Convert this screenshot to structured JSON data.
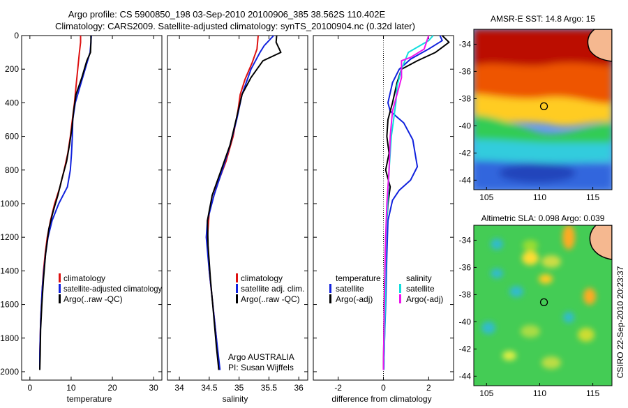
{
  "header": {
    "line1": "Argo profile: CS 5900850_198 03-Sep-2010 20100906_385 38.562S 110.402E",
    "line2": "Climatology: CARS2009. Satellite-adjusted climatology: synTS_20100904.nc (0.32d later)"
  },
  "stamp": "CSIRO 22-Sep-2010 20:23:37",
  "colors": {
    "red": "#dd1111",
    "blue": "#1122dd",
    "black": "#000000",
    "cyan": "#11dddd",
    "magenta": "#ee11ee",
    "land": "#f5b890"
  },
  "chart_data": [
    {
      "type": "line",
      "id": "temperature",
      "xlabel": "temperature",
      "xlim": [
        -2,
        32
      ],
      "ylim": [
        2050,
        0
      ],
      "xticks": [
        0,
        10,
        20,
        30
      ],
      "yticks": [
        0,
        200,
        400,
        600,
        800,
        1000,
        1200,
        1400,
        1600,
        1800,
        2000
      ],
      "legend": [
        "climatology",
        "satellite-adjusted climatology",
        "Argo(..raw -QC)"
      ],
      "series": [
        {
          "name": "climatology",
          "color": "red",
          "points": [
            [
              12.3,
              0
            ],
            [
              12.3,
              40
            ],
            [
              12.0,
              100
            ],
            [
              11.6,
              200
            ],
            [
              11.2,
              300
            ],
            [
              10.8,
              400
            ],
            [
              10.3,
              500
            ],
            [
              9.8,
              600
            ],
            [
              9.2,
              700
            ],
            [
              8.3,
              800
            ],
            [
              7.3,
              900
            ],
            [
              6.0,
              1000
            ],
            [
              5.0,
              1100
            ],
            [
              4.2,
              1200
            ],
            [
              3.7,
              1300
            ],
            [
              3.3,
              1400
            ],
            [
              3.0,
              1500
            ],
            [
              2.8,
              1600
            ],
            [
              2.6,
              1700
            ],
            [
              2.5,
              1800
            ],
            [
              2.4,
              1900
            ],
            [
              2.4,
              1990
            ]
          ]
        },
        {
          "name": "satellite-adjusted climatology",
          "color": "blue",
          "points": [
            [
              14.9,
              0
            ],
            [
              14.8,
              40
            ],
            [
              14.6,
              100
            ],
            [
              13.4,
              200
            ],
            [
              12.2,
              300
            ],
            [
              11.0,
              400
            ],
            [
              10.4,
              500
            ],
            [
              10.3,
              600
            ],
            [
              10.1,
              700
            ],
            [
              9.8,
              800
            ],
            [
              9.1,
              900
            ],
            [
              7.0,
              1000
            ],
            [
              5.4,
              1100
            ],
            [
              4.4,
              1200
            ],
            [
              3.8,
              1300
            ],
            [
              3.4,
              1400
            ],
            [
              3.0,
              1500
            ],
            [
              2.8,
              1600
            ],
            [
              2.6,
              1700
            ],
            [
              2.5,
              1800
            ],
            [
              2.4,
              1900
            ],
            [
              2.4,
              1990
            ]
          ]
        },
        {
          "name": "Argo(..raw -QC)",
          "color": "black",
          "points": [
            [
              14.8,
              0
            ],
            [
              14.8,
              40
            ],
            [
              14.7,
              100
            ],
            [
              13.8,
              150
            ],
            [
              12.6,
              250
            ],
            [
              11.2,
              350
            ],
            [
              10.6,
              450
            ],
            [
              10.2,
              550
            ],
            [
              9.6,
              650
            ],
            [
              8.9,
              750
            ],
            [
              7.8,
              850
            ],
            [
              6.8,
              950
            ],
            [
              5.6,
              1050
            ],
            [
              4.6,
              1150
            ],
            [
              3.8,
              1300
            ],
            [
              3.3,
              1450
            ],
            [
              2.9,
              1600
            ],
            [
              2.6,
              1750
            ],
            [
              2.5,
              1900
            ],
            [
              2.4,
              1990
            ]
          ]
        }
      ]
    },
    {
      "type": "line",
      "id": "salinity",
      "xlabel": "salinity",
      "xlim": [
        33.8,
        36.15
      ],
      "ylim": [
        2050,
        0
      ],
      "xticks": [
        34,
        34.5,
        35,
        35.5,
        36
      ],
      "xticklabels": [
        "34",
        "34.5",
        "35",
        "35.5",
        "36"
      ],
      "legend": [
        "climatology",
        "satellite adj. clim.",
        "Argo(..raw -QC)"
      ],
      "annotation": [
        "Argo AUSTRALIA",
        "PI: Susan Wijffels"
      ],
      "series": [
        {
          "name": "climatology",
          "color": "red",
          "points": [
            [
              35.32,
              0
            ],
            [
              35.3,
              80
            ],
            [
              35.22,
              160
            ],
            [
              35.1,
              260
            ],
            [
              35.02,
              350
            ],
            [
              34.98,
              450
            ],
            [
              34.9,
              600
            ],
            [
              34.78,
              750
            ],
            [
              34.62,
              900
            ],
            [
              34.5,
              1050
            ],
            [
              34.47,
              1200
            ],
            [
              34.5,
              1400
            ],
            [
              34.56,
              1600
            ],
            [
              34.62,
              1800
            ],
            [
              34.66,
              1990
            ]
          ]
        },
        {
          "name": "satellite adj. clim.",
          "color": "blue",
          "points": [
            [
              35.58,
              0
            ],
            [
              35.42,
              60
            ],
            [
              35.35,
              100
            ],
            [
              35.2,
              200
            ],
            [
              35.05,
              350
            ],
            [
              34.96,
              500
            ],
            [
              34.85,
              650
            ],
            [
              34.72,
              800
            ],
            [
              34.58,
              950
            ],
            [
              34.47,
              1100
            ],
            [
              34.45,
              1200
            ],
            [
              34.5,
              1400
            ],
            [
              34.56,
              1600
            ],
            [
              34.62,
              1800
            ],
            [
              34.68,
              1990
            ]
          ]
        },
        {
          "name": "Argo(..raw -QC)",
          "color": "black",
          "points": [
            [
              35.63,
              0
            ],
            [
              35.62,
              40
            ],
            [
              35.7,
              100
            ],
            [
              35.4,
              150
            ],
            [
              35.2,
              250
            ],
            [
              35.05,
              350
            ],
            [
              34.95,
              500
            ],
            [
              34.85,
              650
            ],
            [
              34.7,
              800
            ],
            [
              34.55,
              950
            ],
            [
              34.47,
              1100
            ],
            [
              34.48,
              1250
            ],
            [
              34.52,
              1450
            ],
            [
              34.57,
              1650
            ],
            [
              34.62,
              1850
            ],
            [
              34.66,
              1990
            ]
          ]
        }
      ]
    },
    {
      "type": "line",
      "id": "difference",
      "xlabel": "difference from climatology",
      "xlim": [
        -3.1,
        3.1
      ],
      "ylim": [
        2050,
        0
      ],
      "xticks": [
        -2,
        0,
        2
      ],
      "legend": [
        "temperature",
        "satellite",
        "Argo(-adj)",
        "salinity",
        "satellite",
        "Argo(-adj)"
      ],
      "series": [
        {
          "name": "temperature satellite",
          "color": "blue",
          "points": [
            [
              2.5,
              0
            ],
            [
              2.6,
              30
            ],
            [
              2.0,
              80
            ],
            [
              1.2,
              140
            ],
            [
              0.7,
              200
            ],
            [
              0.4,
              280
            ],
            [
              0.2,
              400
            ],
            [
              0.3,
              450
            ],
            [
              0.9,
              520
            ],
            [
              1.3,
              620
            ],
            [
              1.5,
              780
            ],
            [
              1.2,
              860
            ],
            [
              0.7,
              920
            ],
            [
              0.4,
              980
            ],
            [
              0.2,
              1100
            ],
            [
              0.15,
              1300
            ],
            [
              0.1,
              1600
            ],
            [
              0.05,
              1800
            ],
            [
              0.02,
              1990
            ]
          ]
        },
        {
          "name": "temperature Argo(-adj)",
          "color": "black",
          "points": [
            [
              2.6,
              0
            ],
            [
              2.9,
              40
            ],
            [
              2.3,
              100
            ],
            [
              1.5,
              150
            ],
            [
              0.8,
              200
            ],
            [
              0.6,
              280
            ],
            [
              0.4,
              400
            ],
            [
              0.2,
              500
            ],
            [
              0.15,
              600
            ],
            [
              0.25,
              700
            ],
            [
              0.1,
              800
            ],
            [
              0.3,
              900
            ],
            [
              0.2,
              1000
            ],
            [
              0.1,
              1200
            ],
            [
              0.05,
              1500
            ],
            [
              0.02,
              1800
            ],
            [
              0.0,
              1990
            ]
          ]
        },
        {
          "name": "salinity satellite",
          "color": "cyan",
          "points": [
            [
              2.2,
              0
            ],
            [
              2.0,
              30
            ],
            [
              1.1,
              100
            ],
            [
              0.8,
              200
            ],
            [
              0.6,
              300
            ],
            [
              0.55,
              400
            ],
            [
              0.45,
              500
            ],
            [
              0.35,
              600
            ],
            [
              0.3,
              700
            ],
            [
              0.25,
              800
            ],
            [
              0.2,
              950
            ],
            [
              0.15,
              1100
            ],
            [
              0.1,
              1300
            ],
            [
              0.08,
              1600
            ],
            [
              0.05,
              1800
            ],
            [
              0.02,
              1990
            ]
          ]
        },
        {
          "name": "salinity Argo(-adj)",
          "color": "magenta",
          "points": [
            [
              2.0,
              0
            ],
            [
              1.8,
              80
            ],
            [
              1.2,
              130
            ],
            [
              0.8,
              150
            ],
            [
              0.8,
              250
            ],
            [
              0.6,
              350
            ],
            [
              0.4,
              450
            ],
            [
              0.3,
              600
            ],
            [
              0.25,
              800
            ],
            [
              0.15,
              1000
            ],
            [
              0.1,
              1200
            ],
            [
              0.05,
              1500
            ],
            [
              0.02,
              1800
            ],
            [
              0.0,
              1990
            ]
          ]
        }
      ]
    },
    {
      "type": "heatmap",
      "id": "sst-map",
      "title": "AMSR-E SST: 14.8 Argo: 15",
      "xlim": [
        103.8,
        116.8
      ],
      "ylim": [
        -44.7,
        -32.9
      ],
      "xticks": [
        105,
        110,
        115
      ],
      "yticks": [
        -34,
        -36,
        -38,
        -40,
        -42,
        -44
      ],
      "marker": {
        "lon": 110.402,
        "lat": -38.562
      }
    },
    {
      "type": "heatmap",
      "id": "sla-map",
      "title": "Altimetric SLA: 0.098 Argo: 0.039",
      "xlim": [
        103.8,
        116.8
      ],
      "ylim": [
        -44.7,
        -32.9
      ],
      "xticks": [
        105,
        110,
        115
      ],
      "yticks": [
        -34,
        -36,
        -38,
        -40,
        -42,
        -44
      ],
      "marker": {
        "lon": 110.402,
        "lat": -38.562
      }
    }
  ]
}
